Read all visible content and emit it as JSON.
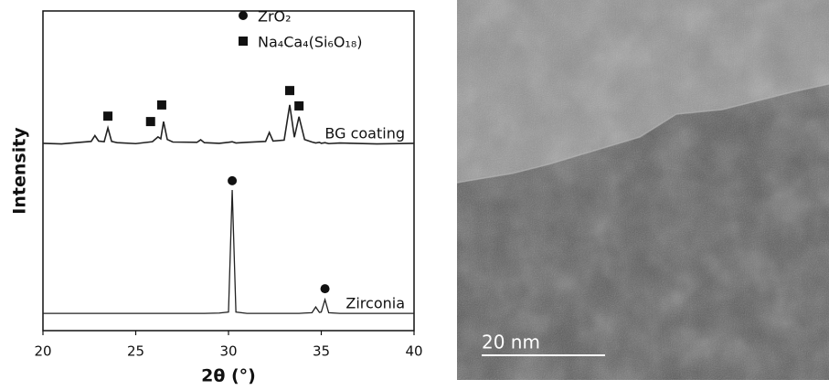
{
  "chart_data": {
    "type": "line",
    "xlabel": "2θ (°)",
    "ylabel": "Intensity",
    "x": [
      20,
      21,
      22,
      22.6,
      22.8,
      23.0,
      23.3,
      23.5,
      23.7,
      24,
      25,
      25.9,
      26.2,
      26.35,
      26.5,
      26.7,
      27,
      28.3,
      28.5,
      28.7,
      29.5,
      30.0,
      30.2,
      30.4,
      31,
      32.0,
      32.2,
      32.4,
      33.0,
      33.3,
      33.55,
      33.8,
      34.1,
      34.5,
      34.7,
      34.9,
      35.0,
      35.2,
      35.4,
      36,
      38,
      40
    ],
    "series": [
      {
        "name": "BG coating",
        "color": "#222222",
        "values": [
          58.6,
          58.4,
          58.9,
          59.2,
          61,
          59.3,
          59.1,
          63.4,
          59.2,
          58.8,
          58.5,
          59.1,
          60.6,
          60.0,
          65.4,
          59.8,
          59.0,
          58.9,
          59.7,
          58.8,
          58.6,
          58.9,
          59.1,
          58.7,
          58.9,
          59.2,
          62,
          59.3,
          59.6,
          70.6,
          60.5,
          66.9,
          59.8,
          59.0,
          58.7,
          58.9,
          58.6,
          58.8,
          58.5,
          58.7,
          58.4,
          58.6
        ]
      },
      {
        "name": "Zirconia",
        "color": "#222222",
        "values": [
          5.4,
          5.4,
          5.4,
          5.4,
          5.4,
          5.4,
          5.4,
          5.4,
          5.4,
          5.4,
          5.4,
          5.4,
          5.4,
          5.4,
          5.4,
          5.4,
          5.4,
          5.4,
          5.4,
          5.4,
          5.5,
          5.8,
          44,
          5.8,
          5.4,
          5.4,
          5.4,
          5.4,
          5.4,
          5.4,
          5.4,
          5.4,
          5.5,
          5.6,
          7.4,
          5.7,
          5.8,
          9.7,
          5.6,
          5.4,
          5.4,
          5.4
        ]
      }
    ],
    "peak_markers": [
      {
        "name": "ZrO₂",
        "shape": "circle",
        "color": "#111111",
        "x": [
          30.2,
          35.2
        ],
        "y": [
          46.9,
          13.1
        ]
      },
      {
        "name": "Na₄Ca₄(Si₆O₁₈)",
        "shape": "square",
        "color": "#111111",
        "x": [
          23.5,
          25.8,
          26.4,
          33.3,
          33.8
        ],
        "y": [
          67.1,
          65.4,
          70.6,
          75.1,
          70.3
        ]
      }
    ],
    "xlim": [
      20,
      40
    ],
    "xticks": [
      20,
      25,
      30,
      35,
      40
    ],
    "ylim": [
      0,
      100
    ]
  },
  "image": {
    "scale_bar": "20 nm"
  }
}
